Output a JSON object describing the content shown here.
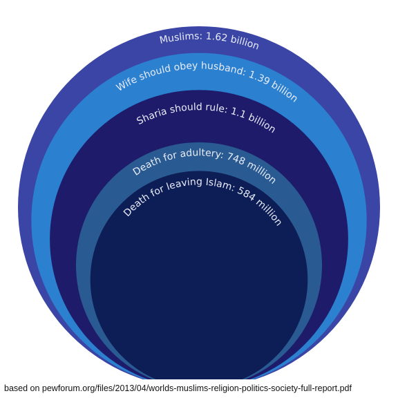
{
  "chart_data": {
    "type": "nested-circles",
    "categories": [
      "Muslims:",
      "Wife should obey husband:",
      "Sharia should rule:",
      "Death for adultery:",
      "Death for leaving Islam:"
    ],
    "values": [
      1620000000,
      1390000000,
      1100000000,
      748000000,
      584000000
    ],
    "value_labels": [
      "1.62 billion",
      "1.39 billion",
      "1.1 billion",
      "748 million",
      "584 million"
    ],
    "colors": [
      "#3b45a6",
      "#2b80d0",
      "#1e1c6a",
      "#2a5a92",
      "#0d1d55"
    ],
    "source": "based on pewforum.org/files/2013/04/worlds-muslims-religion-politics-society-full-report.pdf"
  }
}
